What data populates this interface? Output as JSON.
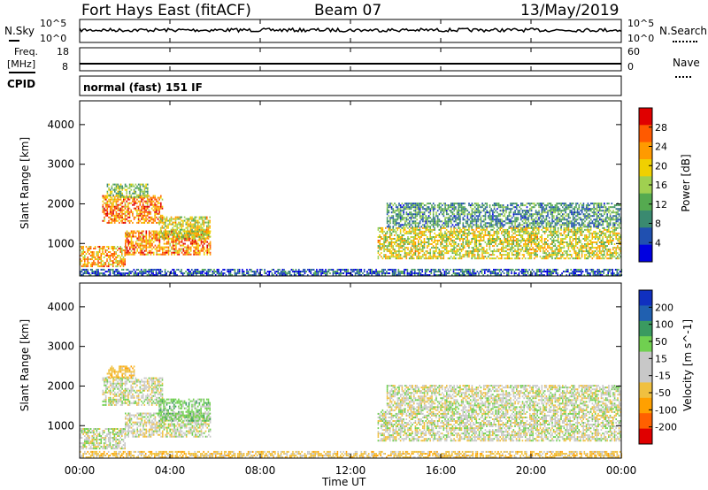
{
  "header": {
    "station": "Fort Hays East (fitACF)",
    "beam": "Beam 07",
    "date": "13/May/2019"
  },
  "noise_panel": {
    "left_label": "N.Sky",
    "right_label": "N.Search",
    "left_ticks": [
      "10^5",
      "10^0"
    ],
    "right_ticks": [
      "10^5",
      "10^0"
    ]
  },
  "freq_panel": {
    "left_label_1": "Freq.",
    "left_label_2": "[MHz]",
    "right_label": "Nave",
    "left_ticks": [
      "18",
      "8"
    ],
    "right_ticks": [
      "60",
      "0"
    ]
  },
  "cpid_panel": {
    "label": "CPID",
    "text": "normal (fast) 151 IF"
  },
  "chart_data": [
    {
      "type": "heatmap",
      "quantity": "Power",
      "ylabel": "Slant Range [km]",
      "yticks": [
        1000,
        2000,
        3000,
        4000
      ],
      "ylim": [
        180,
        4600
      ],
      "xlim": [
        0,
        24
      ],
      "colorbar_label": "Power [dB]",
      "colorbar_ticks": [
        "28",
        "24",
        "20",
        "16",
        "12",
        "8",
        "4"
      ],
      "colorscale": [
        "#0000e0",
        "#2050b0",
        "#3a8a70",
        "#55aa50",
        "#a0d050",
        "#f0d000",
        "#ff9a00",
        "#ff5a00",
        "#e00000"
      ],
      "features": [
        {
          "t0": 0.0,
          "t1": 2.0,
          "r0": 400,
          "r1": 900,
          "level": 22
        },
        {
          "t0": 1.0,
          "t1": 3.7,
          "r0": 1500,
          "r1": 2200,
          "level": 24
        },
        {
          "t0": 1.2,
          "t1": 3.0,
          "r0": 2150,
          "r1": 2500,
          "level": 14
        },
        {
          "t0": 2.0,
          "t1": 5.8,
          "r0": 700,
          "r1": 1300,
          "level": 24
        },
        {
          "t0": 3.5,
          "t1": 5.8,
          "r0": 1100,
          "r1": 1650,
          "level": 18
        },
        {
          "t0": 13.2,
          "t1": 24.0,
          "r0": 600,
          "r1": 1400,
          "level": 18
        },
        {
          "t0": 13.6,
          "t1": 24.0,
          "r0": 1400,
          "r1": 2000,
          "level": 10
        },
        {
          "t0": 0.0,
          "t1": 24.0,
          "r0": 180,
          "r1": 350,
          "level": 6
        }
      ]
    },
    {
      "type": "heatmap",
      "quantity": "Velocity",
      "xlabel": "Time UT",
      "ylabel": "Slant Range [km]",
      "yticks": [
        1000,
        2000,
        3000,
        4000
      ],
      "ylim": [
        180,
        4600
      ],
      "xlim": [
        0,
        24
      ],
      "xticks": [
        "00:00",
        "04:00",
        "08:00",
        "12:00",
        "16:00",
        "20:00",
        "00:00"
      ],
      "colorbar_label": "Velocity [m s^-1]",
      "colorbar_ticks": [
        "200",
        "100",
        "50",
        "15",
        "-15",
        "-50",
        "-100",
        "-200"
      ],
      "colorscale": [
        "#e00000",
        "#ff6000",
        "#ffa000",
        "#f0c040",
        "#c8c8c8",
        "#c8c8c8",
        "#70d050",
        "#3a9a60",
        "#2060b0",
        "#1030c0"
      ],
      "features": [
        {
          "t0": 0.0,
          "t1": 2.0,
          "r0": 400,
          "r1": 900,
          "v": 0
        },
        {
          "t0": 1.0,
          "t1": 3.7,
          "r0": 1500,
          "r1": 2200,
          "v": 0
        },
        {
          "t0": 1.2,
          "t1": 2.4,
          "r0": 2200,
          "r1": 2500,
          "v": -40
        },
        {
          "t0": 2.0,
          "t1": 5.8,
          "r0": 700,
          "r1": 1300,
          "v": 0
        },
        {
          "t0": 3.5,
          "t1": 5.8,
          "r0": 1100,
          "r1": 1650,
          "v": 30
        },
        {
          "t0": 13.2,
          "t1": 24.0,
          "r0": 600,
          "r1": 1400,
          "v": 0
        },
        {
          "t0": 13.6,
          "t1": 24.0,
          "r0": 1400,
          "r1": 2000,
          "v": 0
        },
        {
          "t0": 0.0,
          "t1": 24.0,
          "r0": 180,
          "r1": 350,
          "v": -30
        }
      ]
    }
  ]
}
